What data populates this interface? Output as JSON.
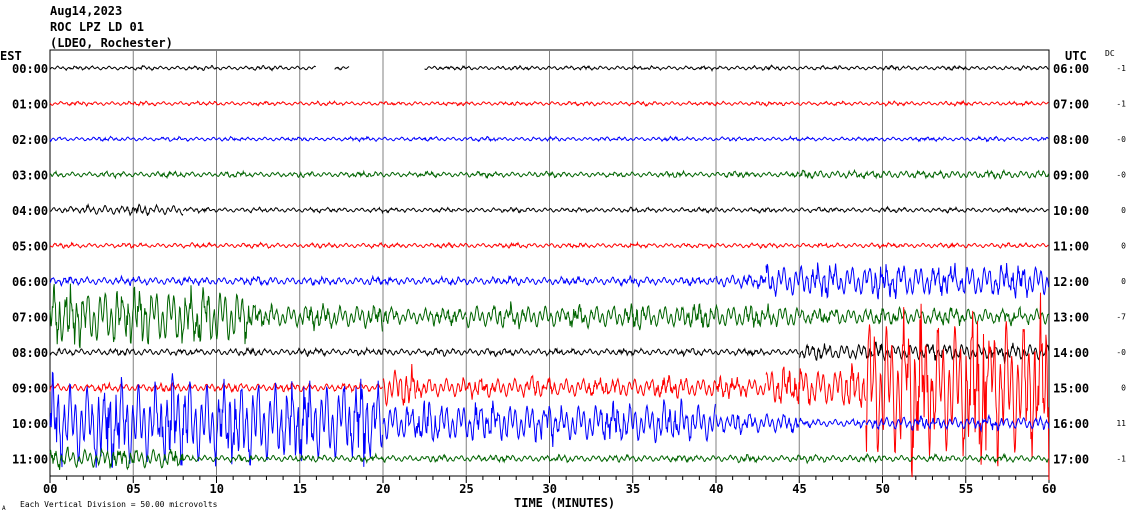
{
  "header": {
    "date": "Aug14,2023",
    "station": "ROC LPZ LD 01",
    "network": "(LDEO, Rochester)"
  },
  "chart_data": {
    "type": "line",
    "title": "ROC LPZ LD 01 helicorder",
    "xlabel": "TIME (MINUTES)",
    "left_axis_label": "EST",
    "right_axis_label": "UTC",
    "dc_label": "DC",
    "xlim": [
      0,
      60
    ],
    "x_ticks": [
      "00",
      "05",
      "10",
      "15",
      "20",
      "25",
      "30",
      "35",
      "40",
      "45",
      "50",
      "55",
      "60"
    ],
    "scale_note": "Each Vertical Division =   50.00 microvolts",
    "corner_mark": "A",
    "colors": [
      "#000000",
      "#ff0000",
      "#0000ff",
      "#006400"
    ],
    "rows": [
      {
        "est": "00:00",
        "utc": "06:00",
        "dc": "-1",
        "env": [
          [
            0,
            16,
            0.06
          ],
          [
            17.1,
            18,
            0.05
          ],
          [
            22.5,
            60,
            0.06
          ]
        ]
      },
      {
        "est": "01:00",
        "utc": "07:00",
        "dc": "-1",
        "env": [
          [
            0,
            60,
            0.06
          ]
        ]
      },
      {
        "est": "02:00",
        "utc": "08:00",
        "dc": "-0",
        "env": [
          [
            0,
            60,
            0.06
          ]
        ]
      },
      {
        "est": "03:00",
        "utc": "09:00",
        "dc": "-0",
        "env": [
          [
            0,
            45,
            0.08
          ],
          [
            45,
            60,
            0.12
          ]
        ]
      },
      {
        "est": "04:00",
        "utc": "10:00",
        "dc": "0",
        "env": [
          [
            0,
            2,
            0.08
          ],
          [
            2,
            8,
            0.15
          ],
          [
            8,
            60,
            0.07
          ]
        ]
      },
      {
        "est": "05:00",
        "utc": "11:00",
        "dc": "0",
        "env": [
          [
            0,
            60,
            0.07
          ]
        ]
      },
      {
        "est": "06:00",
        "utc": "12:00",
        "dc": "0",
        "env": [
          [
            0,
            40,
            0.12
          ],
          [
            40,
            43,
            0.2
          ],
          [
            43,
            60,
            0.5
          ]
        ]
      },
      {
        "est": "07:00",
        "utc": "13:00",
        "dc": "-7",
        "env": [
          [
            0,
            12,
            0.9
          ],
          [
            12,
            20,
            0.35
          ],
          [
            20,
            25,
            0.25
          ],
          [
            25,
            45,
            0.35
          ],
          [
            45,
            60,
            0.25
          ]
        ]
      },
      {
        "est": "08:00",
        "utc": "14:00",
        "dc": "-0",
        "env": [
          [
            0,
            45,
            0.1
          ],
          [
            45,
            60,
            0.25
          ]
        ]
      },
      {
        "est": "09:00",
        "utc": "15:00",
        "dc": "0",
        "env": [
          [
            0,
            20,
            0.12
          ],
          [
            20,
            22,
            0.6
          ],
          [
            22,
            43,
            0.3
          ],
          [
            43,
            49,
            0.6
          ],
          [
            49,
            60,
            2.2
          ]
        ]
      },
      {
        "est": "10:00",
        "utc": "16:00",
        "dc": "11",
        "env": [
          [
            0,
            20,
            1.3
          ],
          [
            20,
            40,
            0.6
          ],
          [
            40,
            45,
            0.3
          ],
          [
            45,
            49,
            0.12
          ],
          [
            49,
            60,
            0.2
          ]
        ]
      },
      {
        "est": "11:00",
        "utc": "17:00",
        "dc": "-1",
        "env": [
          [
            0,
            8,
            0.3
          ],
          [
            8,
            60,
            0.1
          ]
        ]
      }
    ]
  }
}
